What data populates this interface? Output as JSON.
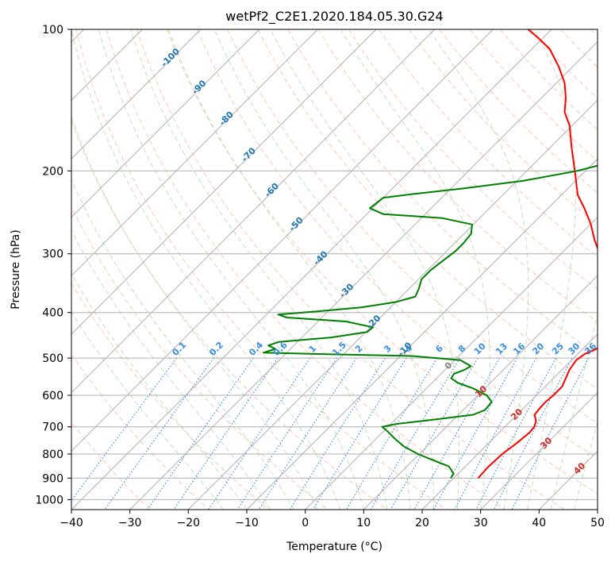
{
  "chart_data": {
    "type": "line",
    "subtype": "skew-t log-p diagram",
    "title": "wetPf2_C2E1.2020.184.05.30.G24",
    "xlabel": "Temperature (°C)",
    "ylabel": "Pressure (hPa)",
    "xlim": [
      -40,
      50
    ],
    "ylim": [
      1050,
      100
    ],
    "y_scale": "log",
    "x_skew": "isotherms skewed 45°",
    "x_ticks": [
      -40,
      -30,
      -20,
      -10,
      0,
      10,
      20,
      30,
      40,
      50
    ],
    "x_tick_labels": [
      "−40",
      "−30",
      "−20",
      "−10",
      "0",
      "10",
      "20",
      "30",
      "40",
      "50"
    ],
    "y_ticks": [
      100,
      200,
      300,
      400,
      500,
      600,
      700,
      800,
      900,
      1000
    ],
    "y_tick_labels": [
      "100",
      "200",
      "300",
      "400",
      "500",
      "600",
      "700",
      "800",
      "900",
      "1000"
    ],
    "grid": true,
    "series": [
      {
        "color": "#ff0000",
        "x_semantic": "temperature_degC",
        "points": [
          [
            900,
            24.2
          ],
          [
            880,
            24.1
          ],
          [
            850,
            24.0
          ],
          [
            800,
            24.2
          ],
          [
            760,
            24.8
          ],
          [
            720,
            25.2
          ],
          [
            700,
            25.0
          ],
          [
            680,
            24.3
          ],
          [
            660,
            23.0
          ],
          [
            640,
            22.8
          ],
          [
            620,
            22.7
          ],
          [
            600,
            22.9
          ],
          [
            575,
            22.9
          ],
          [
            555,
            22.2
          ],
          [
            530,
            21.3
          ],
          [
            505,
            20.8
          ],
          [
            490,
            21.2
          ],
          [
            480,
            22.2
          ],
          [
            472,
            22.6
          ],
          [
            465,
            21.8
          ],
          [
            455,
            21.4
          ],
          [
            440,
            20.9
          ],
          [
            425,
            20.2
          ],
          [
            400,
            18.2
          ],
          [
            370,
            15.1
          ],
          [
            340,
            11.3
          ],
          [
            300,
            6.6
          ],
          [
            280,
            3.3
          ],
          [
            260,
            0.1
          ],
          [
            240,
            -3.8
          ],
          [
            225,
            -7.2
          ],
          [
            200,
            -11.8
          ],
          [
            180,
            -16.0
          ],
          [
            160,
            -20.5
          ],
          [
            150,
            -23.6
          ],
          [
            140,
            -25.8
          ],
          [
            130,
            -28.6
          ],
          [
            120,
            -32.4
          ],
          [
            110,
            -37.0
          ],
          [
            104,
            -41.0
          ],
          [
            100,
            -44.0
          ]
        ]
      },
      {
        "color": "#008000",
        "x_semantic": "dewpoint_degC",
        "points": [
          [
            900,
            19.5
          ],
          [
            880,
            19.2
          ],
          [
            850,
            17.2
          ],
          [
            820,
            12.8
          ],
          [
            800,
            9.8
          ],
          [
            770,
            6.0
          ],
          [
            740,
            3.0
          ],
          [
            715,
            0.6
          ],
          [
            700,
            -1.0
          ],
          [
            690,
            1.0
          ],
          [
            675,
            7.0
          ],
          [
            660,
            12.5
          ],
          [
            645,
            13.7
          ],
          [
            620,
            13.5
          ],
          [
            600,
            11.5
          ],
          [
            580,
            8.0
          ],
          [
            565,
            4.5
          ],
          [
            552,
            2.5
          ],
          [
            540,
            2.2
          ],
          [
            530,
            3.3
          ],
          [
            520,
            3.8
          ],
          [
            505,
            1.0
          ],
          [
            495,
            -8.0
          ],
          [
            490,
            -25.0
          ],
          [
            487,
            -34.0
          ],
          [
            478,
            -32.6
          ],
          [
            470,
            -34.4
          ],
          [
            462,
            -33.2
          ],
          [
            452,
            -25.0
          ],
          [
            440,
            -19.8
          ],
          [
            430,
            -19.6
          ],
          [
            418,
            -25.2
          ],
          [
            410,
            -36.0
          ],
          [
            404,
            -38.0
          ],
          [
            398,
            -32.0
          ],
          [
            390,
            -25.0
          ],
          [
            380,
            -20.0
          ],
          [
            370,
            -17.6
          ],
          [
            355,
            -18.4
          ],
          [
            340,
            -19.5
          ],
          [
            325,
            -19.5
          ],
          [
            310,
            -19.0
          ],
          [
            296,
            -18.5
          ],
          [
            285,
            -18.5
          ],
          [
            272,
            -18.8
          ],
          [
            260,
            -20.2
          ],
          [
            252,
            -26.4
          ],
          [
            247,
            -37.2
          ],
          [
            240,
            -40.5
          ],
          [
            228,
            -40.0
          ],
          [
            224,
            -35.6
          ],
          [
            218,
            -28.0
          ],
          [
            210,
            -19.0
          ],
          [
            200,
            -11.4
          ],
          [
            185,
            -3.6
          ],
          [
            170,
            0.2
          ],
          [
            160,
            0.7
          ],
          [
            150,
            -0.6
          ],
          [
            140,
            -2.3
          ],
          [
            130,
            -4.6
          ],
          [
            120,
            -7.6
          ],
          [
            110,
            -10.6
          ],
          [
            106,
            -12.6
          ],
          [
            102,
            -14.2
          ],
          [
            100,
            -15.0
          ]
        ]
      }
    ],
    "reference_lines": {
      "isotherms": {
        "color": "#b0b0b0",
        "style": "solid"
      },
      "isobars": {
        "color": "#b0b0b0",
        "style": "solid"
      },
      "dry_adiabats": {
        "color": "#f4a582",
        "style": "dashed"
      },
      "moist_adiabats": {
        "color": "#a6d9a6",
        "style": "dashed"
      },
      "mixing_ratio_lines": {
        "color": "#3b8de0",
        "style": "dotted"
      },
      "mixing_ratio_labels": [
        "0.1",
        "0.2",
        "0.4",
        "0.6",
        "1",
        "1.5",
        "2",
        "3",
        "4",
        "6",
        "8",
        "10",
        "13",
        "16",
        "20",
        "25",
        "30",
        "36"
      ],
      "mixing_ratio_values": [
        0.1,
        0.2,
        0.4,
        0.6,
        1,
        1.5,
        2,
        3,
        4,
        6,
        8,
        10,
        13,
        16,
        20,
        25,
        30,
        36
      ],
      "blue_labels": [
        "-100",
        "-90",
        "-80",
        "-70",
        "-60",
        "-50",
        "-40",
        "-30",
        "-20",
        "-10"
      ],
      "blue_label_color": "#1f77b4",
      "red_labels": [
        "0",
        "10",
        "20",
        "30",
        "40"
      ],
      "red_label_color": "#d62728"
    }
  }
}
